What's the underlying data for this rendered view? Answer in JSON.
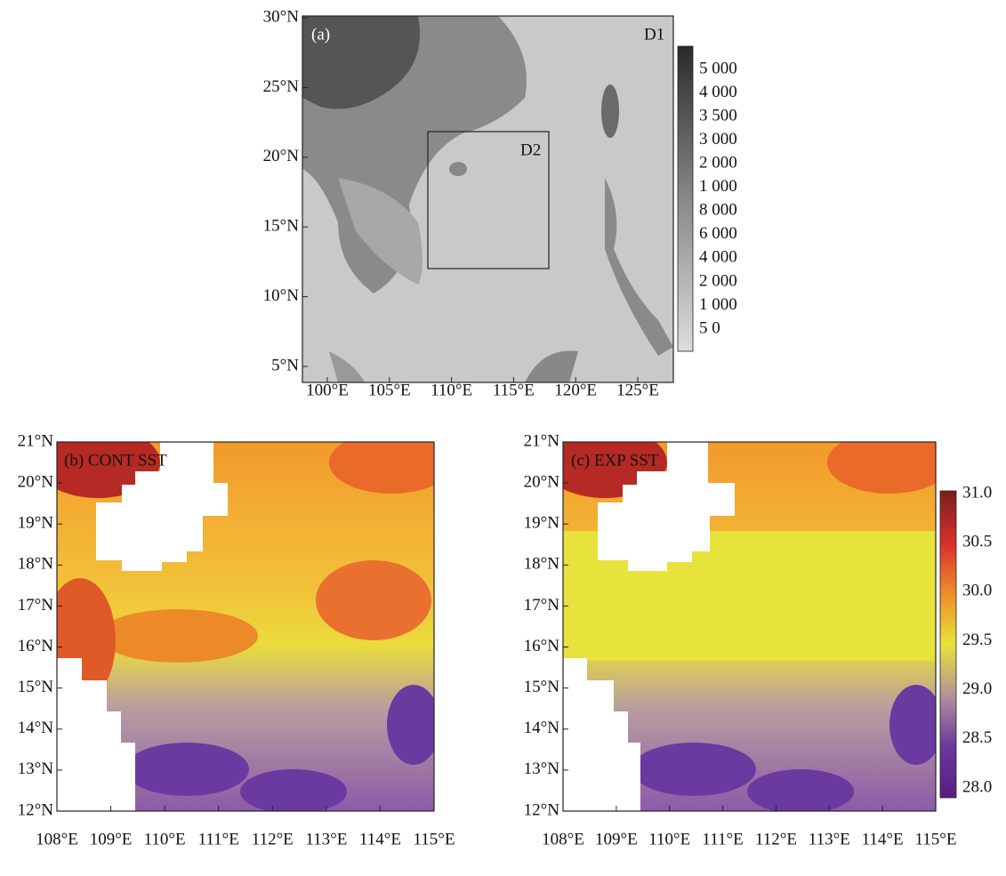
{
  "panel_a": {
    "label": "(a)",
    "domain_outer": "D1",
    "domain_inner": "D2",
    "y_ticks": [
      "30°N",
      "25°N",
      "20°N",
      "15°N",
      "10°N",
      "5°N"
    ],
    "x_ticks": [
      "100°E",
      "105°E",
      "110°E",
      "115°E",
      "120°E",
      "125°E"
    ],
    "colorbar_ticks": [
      "5 000",
      "4 000",
      "3 500",
      "3 000",
      "2 000",
      "1 000",
      "8 000",
      "6 000",
      "4 000",
      "2 000",
      "1 000",
      "5 0"
    ]
  },
  "panel_b": {
    "label": "(b) CONT SST",
    "y_ticks": [
      "21°N",
      "20°N",
      "19°N",
      "18°N",
      "17°N",
      "16°N",
      "15°N",
      "14°N",
      "13°N",
      "12°N"
    ],
    "x_ticks": [
      "108°E",
      "109°E",
      "110°E",
      "111°E",
      "112°E",
      "113°E",
      "114°E",
      "115°E"
    ]
  },
  "panel_c": {
    "label": "(c) EXP SST",
    "y_ticks": [
      "21°N",
      "20°N",
      "19°N",
      "18°N",
      "17°N",
      "16°N",
      "15°N",
      "14°N",
      "13°N",
      "12°N"
    ],
    "x_ticks": [
      "108°E",
      "109°E",
      "110°E",
      "111°E",
      "112°E",
      "113°E",
      "114°E",
      "115°E"
    ],
    "colorbar_ticks": [
      "31.0",
      "30.5",
      "30.0",
      "29.5",
      "29.0",
      "28.5",
      "28.0"
    ]
  }
}
